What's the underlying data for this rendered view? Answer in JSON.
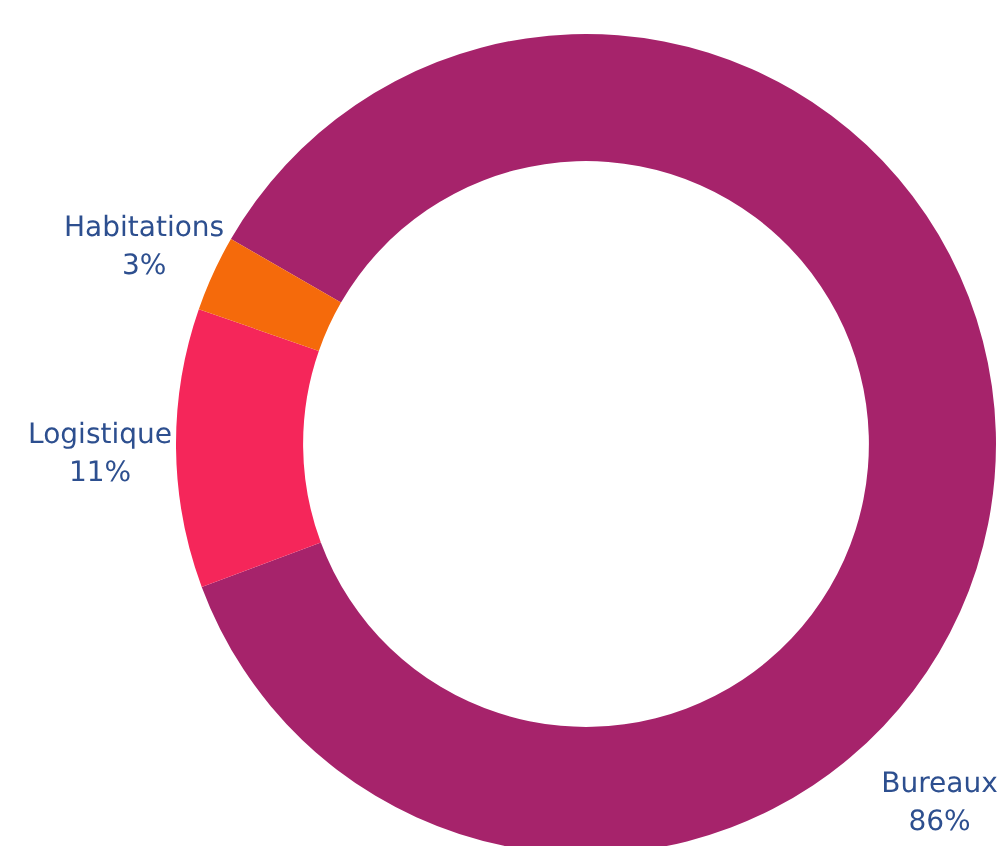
{
  "chart_data": {
    "type": "donut",
    "categories": [
      "Bureaux",
      "Logistique",
      "Habitations"
    ],
    "values": [
      86,
      11,
      3
    ],
    "colors": [
      "#a6236b",
      "#f5265a",
      "#f56a0b"
    ],
    "value_labels": [
      "86%",
      "11%",
      "3%"
    ]
  }
}
